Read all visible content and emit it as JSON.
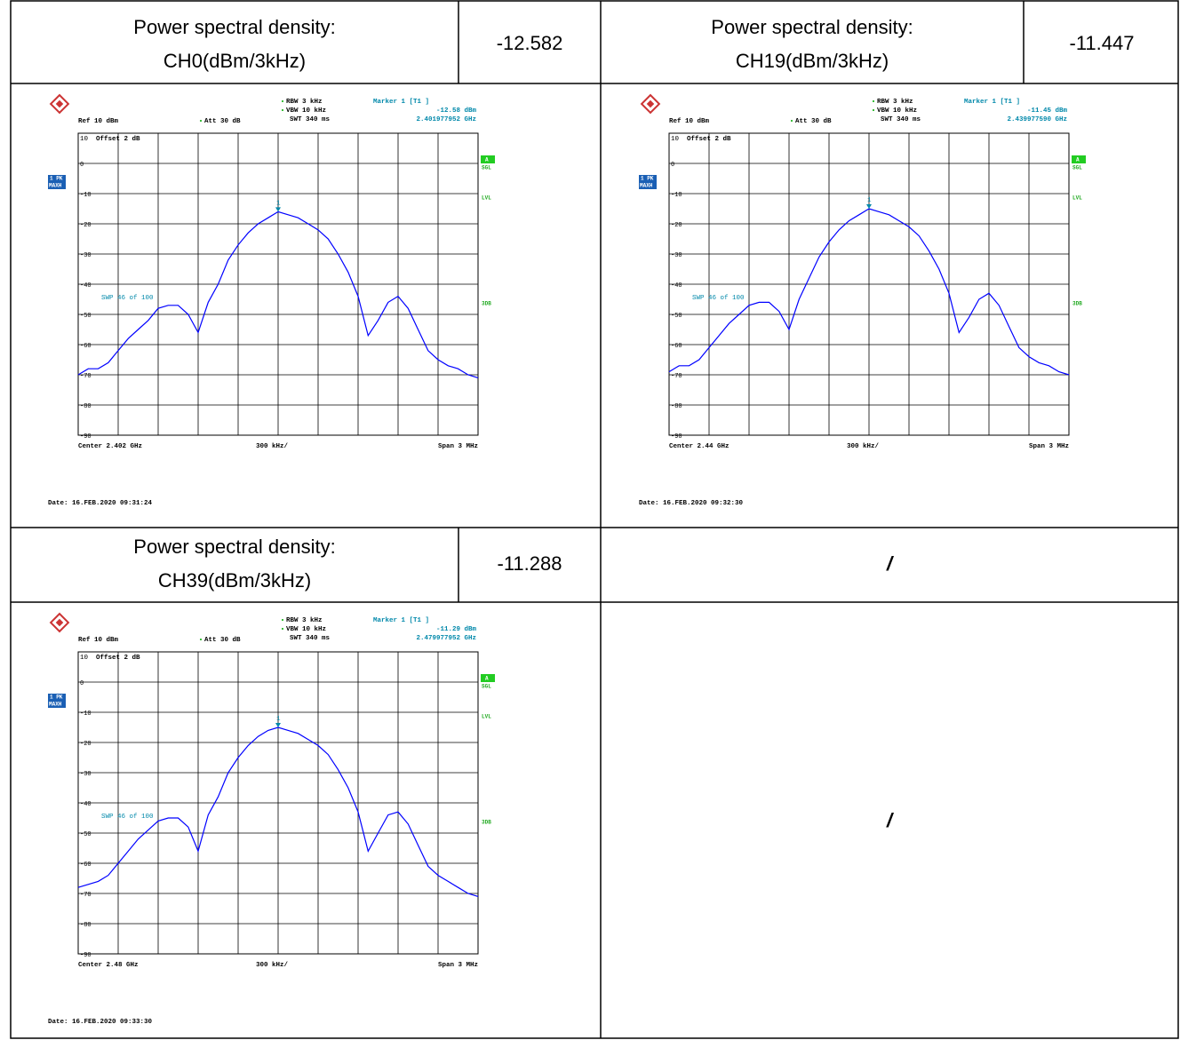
{
  "table": {
    "cells": [
      {
        "title": [
          "Power spectral density:",
          "CH0(dBm/3kHz)"
        ],
        "value": -12.582
      },
      {
        "title": [
          "Power spectral density:",
          "CH19(dBm/3kHz)"
        ],
        "value": -11.447
      },
      {
        "title": [
          "Power spectral density:",
          "CH39(dBm/3kHz)"
        ],
        "value": -11.288
      }
    ],
    "placeholders": [
      "/",
      "/"
    ]
  },
  "plots": [
    {
      "rbw": "RBW 3 kHz",
      "vbw": "VBW 10 kHz",
      "swt": "SWT 340 ms",
      "marker": "Marker 1 [T1 ]",
      "marker_level": "-12.58 dBm",
      "marker_freq": "2.401977952 GHz",
      "ref": "Ref 10 dBm",
      "att": "Att 30 dB",
      "offset": "Offset 2 dB",
      "ref_level": "10",
      "marker_number": "1",
      "trace_mode": [
        "1 PK",
        "MAXH"
      ],
      "side_labels": [
        "A",
        "SGL",
        "LVL",
        "3DB"
      ],
      "swp": "SWP 46 of 100",
      "center": "Center 2.402 GHz",
      "div": "300 kHz/",
      "span": "Span 3 MHz",
      "date": "Date: 16.FEB.2020 09:31:24",
      "ylim": [
        -90,
        10
      ],
      "yticks": [
        0,
        -10,
        -20,
        -30,
        -40,
        -50,
        -60,
        -70,
        -80,
        -90
      ],
      "trace_color": "#0000ff",
      "trace": [
        -70,
        -68,
        -68,
        -66,
        -62,
        -58,
        -55,
        -52,
        -48,
        -47,
        -47,
        -50,
        -56,
        -46,
        -40,
        -32,
        -27,
        -23,
        -20,
        -18,
        -16,
        -17,
        -18,
        -20,
        -22,
        -25,
        -30,
        -36,
        -44,
        -57,
        -52,
        -46,
        -44,
        -48,
        -55,
        -62,
        -65,
        -67,
        -68,
        -70,
        -71
      ]
    },
    {
      "rbw": "RBW 3 kHz",
      "vbw": "VBW 10 kHz",
      "swt": "SWT 340 ms",
      "marker": "Marker 1 [T1 ]",
      "marker_level": "-11.45 dBm",
      "marker_freq": "2.439977590 GHz",
      "ref": "Ref 10 dBm",
      "att": "Att 30 dB",
      "offset": "Offset 2 dB",
      "ref_level": "10",
      "marker_number": "1",
      "trace_mode": [
        "1 PK",
        "MAXH"
      ],
      "side_labels": [
        "A",
        "SGL",
        "LVL",
        "3DB"
      ],
      "swp": "SWP 46 of 100",
      "center": "Center 2.44 GHz",
      "div": "300 kHz/",
      "span": "Span 3 MHz",
      "date": "Date: 16.FEB.2020 09:32:30",
      "ylim": [
        -90,
        10
      ],
      "yticks": [
        0,
        -10,
        -20,
        -30,
        -40,
        -50,
        -60,
        -70,
        -80,
        -90
      ],
      "trace_color": "#0000ff",
      "trace": [
        -69,
        -67,
        -67,
        -65,
        -61,
        -57,
        -53,
        -50,
        -47,
        -46,
        -46,
        -49,
        -55,
        -45,
        -38,
        -31,
        -26,
        -22,
        -19,
        -17,
        -15,
        -16,
        -17,
        -19,
        -21,
        -24,
        -29,
        -35,
        -43,
        -56,
        -51,
        -45,
        -43,
        -47,
        -54,
        -61,
        -64,
        -66,
        -67,
        -69,
        -70
      ]
    },
    {
      "rbw": "RBW 3 kHz",
      "vbw": "VBW 10 kHz",
      "swt": "SWT 340 ms",
      "marker": "Marker 1 [T1 ]",
      "marker_level": "-11.29 dBm",
      "marker_freq": "2.479977952 GHz",
      "ref": "Ref 10 dBm",
      "att": "Att 30 dB",
      "offset": "Offset 2 dB",
      "ref_level": "10",
      "marker_number": "1",
      "trace_mode": [
        "1 PK",
        "MAXH"
      ],
      "side_labels": [
        "A",
        "SGL",
        "LVL",
        "3DB"
      ],
      "swp": "SWP 46 of 100",
      "center": "Center 2.48 GHz",
      "div": "300 kHz/",
      "span": "Span 3 MHz",
      "date": "Date: 16.FEB.2020 09:33:30",
      "ylim": [
        -90,
        10
      ],
      "yticks": [
        0,
        -10,
        -20,
        -30,
        -40,
        -50,
        -60,
        -70,
        -80,
        -90
      ],
      "trace_color": "#0000ff",
      "trace": [
        -68,
        -67,
        -66,
        -64,
        -60,
        -56,
        -52,
        -49,
        -46,
        -45,
        -45,
        -48,
        -56,
        -44,
        -38,
        -30,
        -25,
        -21,
        -18,
        -16,
        -15,
        -16,
        -17,
        -19,
        -21,
        -24,
        -29,
        -35,
        -43,
        -56,
        -50,
        -44,
        -43,
        -47,
        -54,
        -61,
        -64,
        -66,
        -68,
        -70,
        -71
      ]
    }
  ]
}
